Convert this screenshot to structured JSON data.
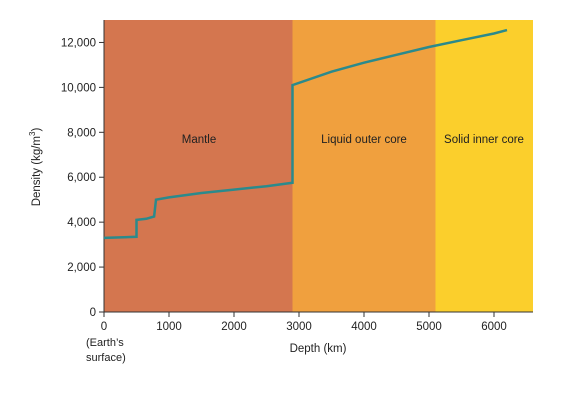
{
  "chart_data": {
    "type": "line",
    "xlabel": "Depth (km)",
    "ylabel_main": "Density (kg/m",
    "ylabel_sup": "3",
    "ylabel_close": ")",
    "xlim": [
      0,
      6600
    ],
    "ylim": [
      0,
      13000
    ],
    "xticks": [
      0,
      1000,
      2000,
      3000,
      4000,
      5000,
      6000
    ],
    "xtick_labels": [
      "0",
      "1000",
      "2000",
      "3000",
      "4000",
      "5000",
      "6000"
    ],
    "yticks": [
      0,
      2000,
      4000,
      6000,
      8000,
      10000,
      12000
    ],
    "ytick_labels": [
      "0",
      "2,000",
      "4,000",
      "6,000",
      "8,000",
      "10,000",
      "12,000"
    ],
    "x0_note": [
      "(Earth’s",
      "surface)"
    ],
    "regions": [
      {
        "label": "Mantle",
        "x_start": 0,
        "x_end": 2900,
        "color": "#d4764f"
      },
      {
        "label": "Liquid outer core",
        "x_start": 2900,
        "x_end": 5100,
        "color": "#f0a03e"
      },
      {
        "label": "Solid inner core",
        "x_start": 5100,
        "x_end": 6600,
        "color": "#fbcf2c"
      }
    ],
    "series": [
      {
        "color": "#2b8a8c",
        "points": [
          [
            0,
            3300
          ],
          [
            500,
            3350
          ],
          [
            500,
            4100
          ],
          [
            650,
            4150
          ],
          [
            770,
            4250
          ],
          [
            800,
            5000
          ],
          [
            1000,
            5100
          ],
          [
            1500,
            5300
          ],
          [
            2000,
            5450
          ],
          [
            2500,
            5600
          ],
          [
            2900,
            5750
          ],
          [
            2900,
            10100
          ],
          [
            3500,
            10700
          ],
          [
            4000,
            11100
          ],
          [
            4500,
            11450
          ],
          [
            5000,
            11800
          ],
          [
            5500,
            12100
          ],
          [
            6000,
            12400
          ],
          [
            6200,
            12550
          ]
        ]
      }
    ],
    "grid": false,
    "legend": "none"
  }
}
